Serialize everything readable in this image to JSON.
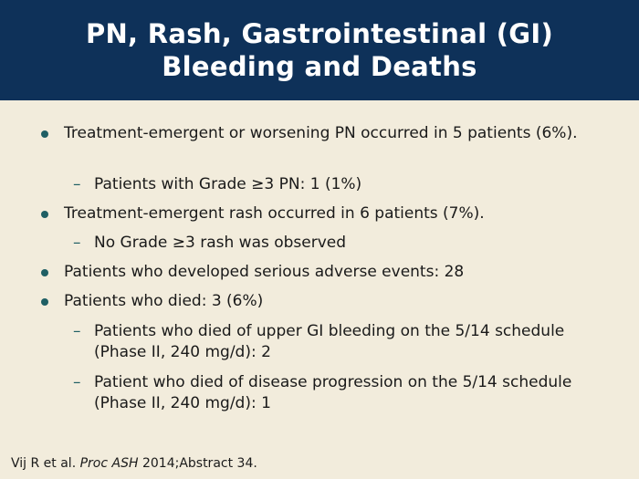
{
  "slide": {
    "title_line1": "PN, Rash, Gastrointestinal (GI)",
    "title_line2": "Bleeding and Deaths",
    "bullets": [
      {
        "text": "Treatment-emergent or worsening PN occurred in 5 patients (6%).",
        "subs": [
          "Patients with Grade ≥3 PN: 1 (1%)"
        ]
      },
      {
        "text": "Treatment-emergent rash occurred in 6 patients (7%).",
        "subs": [
          "No Grade ≥3 rash was observed"
        ]
      },
      {
        "text": "Patients who developed serious adverse events: 28",
        "subs": []
      },
      {
        "text": "Patients who died: 3 (6%)",
        "subs": [
          "Patients who died of upper GI bleeding on the 5/14 schedule (Phase II, 240 mg/d): 2",
          "Patient who died of disease progression on the 5/14 schedule (Phase II, 240 mg/d): 1"
        ]
      }
    ],
    "sub_marker": "–",
    "reference": {
      "authors": "Vij R et al.",
      "journal": "Proc ASH",
      "citation": "2014;Abstract 34."
    }
  },
  "colors": {
    "header_bg": "#0e3159",
    "slide_bg": "#f2ecdc",
    "bullet": "#1f5f64"
  }
}
